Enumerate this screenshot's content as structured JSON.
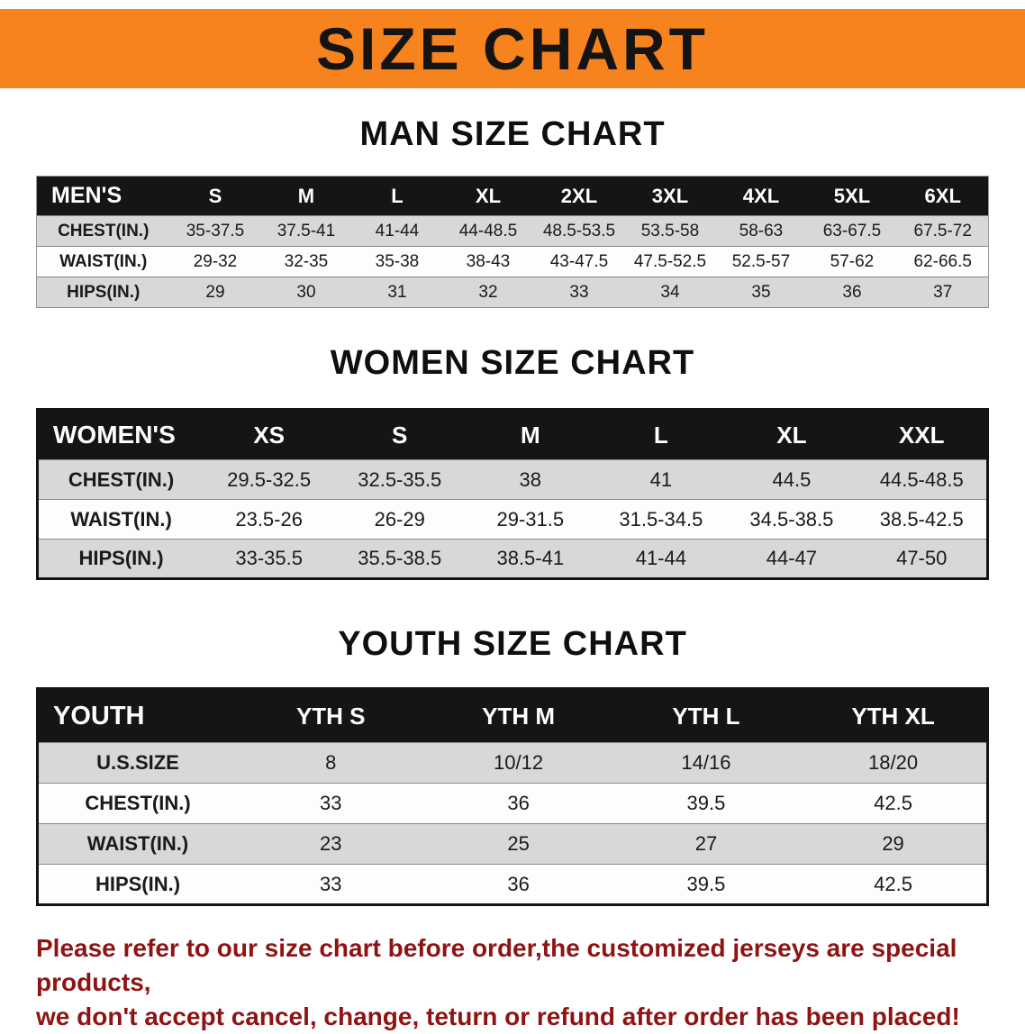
{
  "banner": {
    "title": "SIZE CHART",
    "bg_color": "#F6831D"
  },
  "tables": [
    {
      "heading": "MAN SIZE CHART",
      "header": [
        "MEN'S",
        "S",
        "M",
        "L",
        "XL",
        "2XL",
        "3XL",
        "4XL",
        "5XL",
        "6XL"
      ],
      "rows": [
        [
          "CHEST(IN.)",
          "35-37.5",
          "37.5-41",
          "41-44",
          "44-48.5",
          "48.5-53.5",
          "53.5-58",
          "58-63",
          "63-67.5",
          "67.5-72"
        ],
        [
          "WAIST(IN.)",
          "29-32",
          "32-35",
          "35-38",
          "38-43",
          "43-47.5",
          "47.5-52.5",
          "52.5-57",
          "57-62",
          "62-66.5"
        ],
        [
          "HIPS(IN.)",
          "29",
          "30",
          "31",
          "32",
          "33",
          "34",
          "35",
          "36",
          "37"
        ]
      ]
    },
    {
      "heading": "WOMEN SIZE CHART",
      "header": [
        "WOMEN'S",
        "XS",
        "S",
        "M",
        "L",
        "XL",
        "XXL"
      ],
      "rows": [
        [
          "CHEST(IN.)",
          "29.5-32.5",
          "32.5-35.5",
          "38",
          "41",
          "44.5",
          "44.5-48.5"
        ],
        [
          "WAIST(IN.)",
          "23.5-26",
          "26-29",
          "29-31.5",
          "31.5-34.5",
          "34.5-38.5",
          "38.5-42.5"
        ],
        [
          "HIPS(IN.)",
          "33-35.5",
          "35.5-38.5",
          "38.5-41",
          "41-44",
          "44-47",
          "47-50"
        ]
      ]
    },
    {
      "heading": "YOUTH SIZE CHART",
      "header": [
        "YOUTH",
        "YTH S",
        "YTH M",
        "YTH L",
        "YTH XL"
      ],
      "rows": [
        [
          "U.S.SIZE",
          "8",
          "10/12",
          "14/16",
          "18/20"
        ],
        [
          "CHEST(IN.)",
          "33",
          "36",
          "39.5",
          "42.5"
        ],
        [
          "WAIST(IN.)",
          "23",
          "25",
          "27",
          "29"
        ],
        [
          "HIPS(IN.)",
          "33",
          "36",
          "39.5",
          "42.5"
        ]
      ]
    }
  ],
  "notice": {
    "line1": "Please refer to our size chart before order,the customized jerseys are special products,",
    "line2": "we don't accept cancel, change, teturn or refund after order has been placed!",
    "text_color": "#8E1414"
  }
}
